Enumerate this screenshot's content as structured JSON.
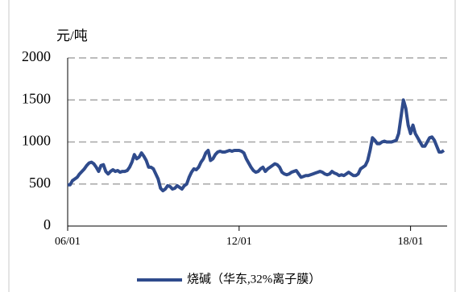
{
  "chart_data": {
    "type": "line",
    "y_label": "元/吨",
    "categories": [
      "06/01",
      null,
      null,
      null,
      null,
      null,
      null,
      null,
      null,
      null,
      null,
      null,
      null,
      null,
      null,
      null,
      null,
      null,
      null,
      null,
      null,
      null,
      null,
      null,
      null,
      null,
      null,
      null,
      null,
      null,
      null,
      null,
      null,
      null,
      null,
      null,
      null,
      null,
      null,
      null,
      null,
      null,
      null,
      null,
      null,
      null,
      null,
      null,
      null,
      null,
      null,
      null,
      null,
      null,
      null,
      null,
      null,
      null,
      null,
      null,
      null,
      null,
      null,
      null,
      null,
      null,
      null,
      null,
      null,
      null,
      null,
      null,
      "12/01",
      null,
      null,
      null,
      null,
      null,
      null,
      null,
      null,
      null,
      null,
      null,
      null,
      null,
      null,
      null,
      null,
      null,
      null,
      null,
      null,
      null,
      null,
      null,
      null,
      null,
      null,
      null,
      null,
      null,
      null,
      null,
      null,
      null,
      null,
      null,
      null,
      null,
      null,
      null,
      null,
      null,
      null,
      null,
      null,
      null,
      null,
      null,
      null,
      null,
      null,
      null,
      null,
      null,
      null,
      null,
      null,
      null,
      null,
      null,
      null,
      null,
      null,
      null,
      null,
      null,
      null,
      null,
      null,
      null,
      null,
      null,
      "18/01",
      null,
      null,
      null,
      null,
      null,
      null,
      null,
      null,
      null,
      null,
      null,
      null,
      null,
      null
    ],
    "series": [
      {
        "name": "烧碱（华东,32%离子膜）",
        "color": "#2f4b8c",
        "values": [
          490,
          490,
          540,
          560,
          580,
          620,
          650,
          680,
          720,
          750,
          760,
          740,
          700,
          650,
          720,
          730,
          650,
          620,
          650,
          670,
          650,
          660,
          640,
          650,
          650,
          660,
          700,
          760,
          850,
          800,
          820,
          870,
          830,
          780,
          700,
          700,
          680,
          620,
          560,
          450,
          420,
          440,
          480,
          470,
          440,
          450,
          480,
          460,
          440,
          480,
          500,
          580,
          640,
          680,
          670,
          700,
          760,
          800,
          870,
          900,
          780,
          800,
          850,
          880,
          890,
          880,
          880,
          890,
          900,
          890,
          900,
          900,
          900,
          890,
          870,
          800,
          750,
          700,
          660,
          640,
          650,
          680,
          700,
          650,
          680,
          700,
          720,
          740,
          730,
          700,
          640,
          620,
          610,
          620,
          640,
          650,
          660,
          620,
          580,
          590,
          600,
          600,
          610,
          620,
          630,
          640,
          650,
          640,
          620,
          610,
          620,
          650,
          630,
          620,
          600,
          610,
          600,
          620,
          640,
          620,
          600,
          600,
          620,
          680,
          700,
          720,
          780,
          900,
          1050,
          1020,
          980,
          980,
          1000,
          1010,
          1000,
          1000,
          1000,
          1010,
          1020,
          1100,
          1300,
          1500,
          1400,
          1200,
          1100,
          1200,
          1100,
          1050,
          1000,
          950,
          950,
          1000,
          1050,
          1060,
          1020,
          950,
          880,
          880,
          900
        ]
      }
    ],
    "ylim": [
      0,
      2000
    ],
    "yticks": [
      0,
      500,
      1000,
      1500,
      2000
    ],
    "grid": true
  }
}
